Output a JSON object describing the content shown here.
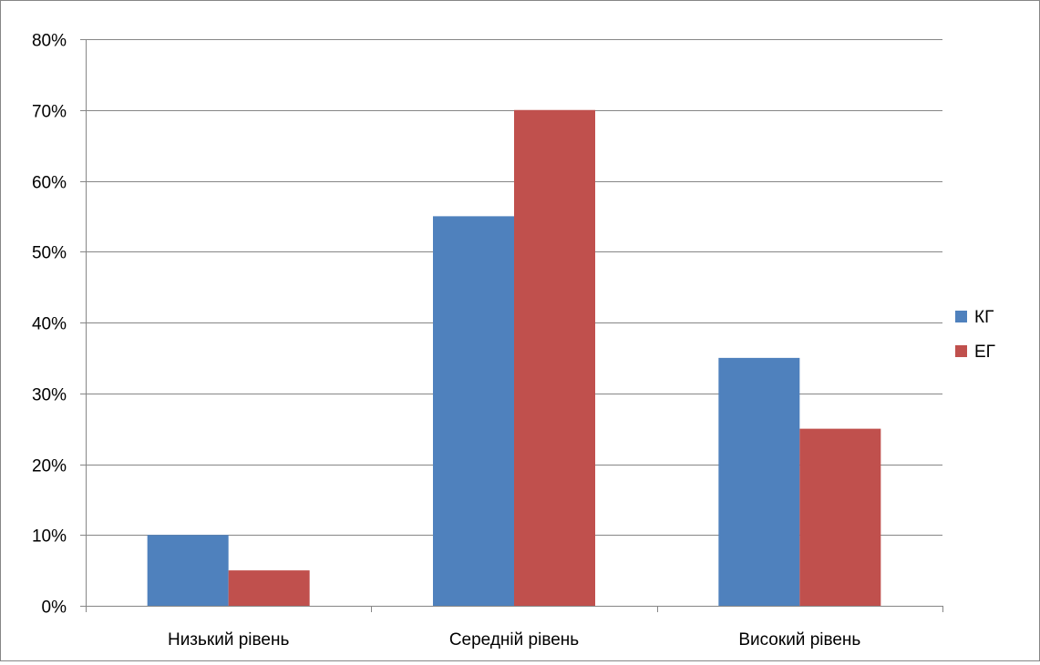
{
  "chart_data": {
    "type": "bar",
    "title": "",
    "xlabel": "",
    "ylabel": "",
    "categories": [
      "Низький рівень",
      "Середній рівень",
      "Високий рівень"
    ],
    "series": [
      {
        "name": "КГ",
        "values": [
          10,
          55,
          35
        ],
        "color": "#4F81BD"
      },
      {
        "name": "ЕГ",
        "values": [
          5,
          70,
          25
        ],
        "color": "#C0504D"
      }
    ],
    "ylim": [
      0,
      80
    ],
    "yticks": [
      0,
      10,
      20,
      30,
      40,
      50,
      60,
      70,
      80
    ],
    "ytick_labels": [
      "0%",
      "10%",
      "20%",
      "30%",
      "40%",
      "50%",
      "60%",
      "70%",
      "80%"
    ],
    "y_format": "percent",
    "grid": true,
    "legend": "right"
  }
}
